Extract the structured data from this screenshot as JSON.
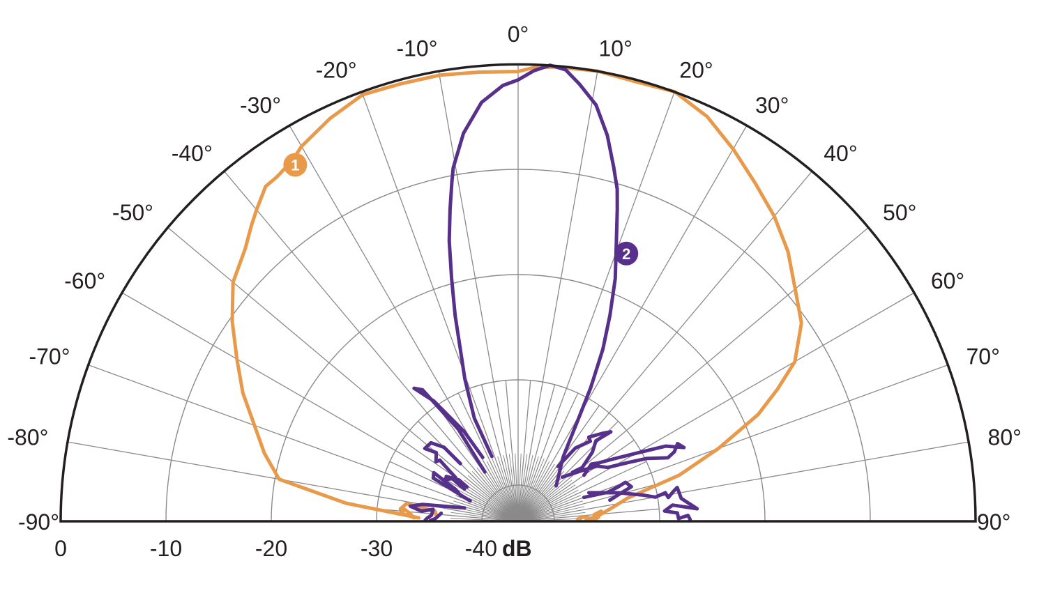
{
  "chart_data": {
    "type": "polar",
    "title": "",
    "radial_axis": {
      "unit": "dB",
      "tick_labels": [
        "0",
        "-10",
        "-20",
        "-30",
        "-40"
      ],
      "ticks": [
        0,
        -10,
        -20,
        -30,
        -40
      ],
      "range": [
        -40,
        0
      ]
    },
    "angular_axis": {
      "range": [
        -90,
        90
      ],
      "tick_step": 10,
      "tick_labels": [
        "-90°",
        "-80°",
        "-70°",
        "-60°",
        "-50°",
        "-40°",
        "-30°",
        "-20°",
        "-10°",
        "0°",
        "10°",
        "20°",
        "30°",
        "40°",
        "50°",
        "60°",
        "70°",
        "80°",
        "90°"
      ],
      "minor_spoke_step": 5
    },
    "grid": true,
    "legend": "numbered badges on curves",
    "series": [
      {
        "name": "1",
        "color": "#e8994a",
        "badge": {
          "label": "1",
          "angle": -32,
          "db": -3.5
        },
        "points": [
          [
            -88,
            -34
          ],
          [
            -84,
            -27
          ],
          [
            -80,
            -20.4
          ],
          [
            -75,
            -18.5
          ],
          [
            -70,
            -16.8
          ],
          [
            -65,
            -14.6
          ],
          [
            -60,
            -12.6
          ],
          [
            -55,
            -10.3
          ],
          [
            -50,
            -8.1
          ],
          [
            -45,
            -6.8
          ],
          [
            -42,
            -5.6
          ],
          [
            -40,
            -4.8
          ],
          [
            -37,
            -3.6
          ],
          [
            -35,
            -3.5
          ],
          [
            -32,
            -3.0
          ],
          [
            -30,
            -2.3
          ],
          [
            -25,
            -1.2
          ],
          [
            -20,
            -0.3
          ],
          [
            -15,
            -0.4
          ],
          [
            -10,
            -0.4
          ],
          [
            -5,
            -0.6
          ],
          [
            0,
            -0.7
          ],
          [
            2,
            -0.3
          ],
          [
            5,
            -0.1
          ],
          [
            10,
            0
          ],
          [
            15,
            -0.2
          ],
          [
            20,
            0
          ],
          [
            25,
            -1.0
          ],
          [
            30,
            -2.6
          ],
          [
            35,
            -4.2
          ],
          [
            40,
            -5.6
          ],
          [
            45,
            -7.2
          ],
          [
            50,
            -9.1
          ],
          [
            55,
            -10.6
          ],
          [
            60,
            -13.1
          ],
          [
            63,
            -15.8
          ],
          [
            66,
            -18.5
          ],
          [
            70,
            -23.2
          ],
          [
            74,
            -27.5
          ],
          [
            78,
            -32.8
          ],
          [
            82,
            -34.5
          ],
          [
            86,
            -35.8
          ],
          [
            89,
            -37
          ]
        ]
      },
      {
        "name": "2",
        "color": "#56308a",
        "badge": {
          "label": "2",
          "angle": 22,
          "db": -16
        },
        "main_lobe": [
          [
            -22,
            -36.8
          ],
          [
            -23,
            -32.8
          ],
          [
            -20.5,
            -29
          ],
          [
            -18.5,
            -26.1
          ],
          [
            -17,
            -23
          ],
          [
            -15.3,
            -19.5
          ],
          [
            -13.8,
            -16
          ],
          [
            -12.3,
            -13.1
          ],
          [
            -11,
            -10.5
          ],
          [
            -10.4,
            -9.3
          ],
          [
            -8,
            -6.2
          ],
          [
            -5,
            -3.5
          ],
          [
            -2,
            -2.0
          ],
          [
            0,
            -1.5
          ],
          [
            2,
            -0.6
          ],
          [
            4,
            0
          ],
          [
            6,
            -0.3
          ],
          [
            8,
            -1.5
          ],
          [
            10.6,
            -3.2
          ],
          [
            13,
            -5.8
          ],
          [
            15.1,
            -8.6
          ],
          [
            16.6,
            -10.5
          ],
          [
            17.6,
            -12.3
          ],
          [
            19.5,
            -15.5
          ],
          [
            21.8,
            -18.6
          ],
          [
            24,
            -22
          ],
          [
            26.2,
            -25.2
          ],
          [
            28.5,
            -29
          ],
          [
            30.4,
            -32.1
          ],
          [
            35,
            -36
          ],
          [
            47,
            -38.5
          ]
        ],
        "side_lobes": [
          [
            [
              -34,
              -37.8
            ],
            [
              -33,
              -33
            ],
            [
              -36,
              -28
            ],
            [
              -38,
              -27.4
            ],
            [
              -35,
              -29.5
            ],
            [
              -31,
              -33.5
            ],
            [
              -29,
              -36.5
            ]
          ],
          [
            [
              -55,
              -36.2
            ],
            [
              -52,
              -34
            ],
            [
              -54,
              -33.8
            ],
            [
              -50,
              -33.3
            ],
            [
              -52,
              -32.2
            ],
            [
              -48,
              -32.3
            ],
            [
              -45,
              -33.5
            ],
            [
              -45,
              -35.7
            ]
          ],
          [
            [
              -59,
              -37.5
            ],
            [
              -57,
              -36
            ],
            [
              -60,
              -35.5
            ],
            [
              -58,
              -35.4
            ],
            [
              -55,
              -36.6
            ],
            [
              -56,
              -37.6
            ]
          ],
          [
            [
              -67,
              -38.5
            ],
            [
              -63,
              -34.4
            ],
            [
              -60,
              -34.2
            ],
            [
              -63,
              -36.8
            ],
            [
              -66,
              -37.5
            ]
          ],
          [
            [
              -76,
              -38.2
            ],
            [
              -80,
              -34.2
            ],
            [
              -82,
              -33.1
            ],
            [
              -84,
              -34.2
            ],
            [
              -82,
              -35.3
            ],
            [
              -86,
              -35.2
            ],
            [
              -88,
              -34.8
            ],
            [
              -89.5,
              -34.6
            ]
          ],
          [
            [
              -84,
              -36.1
            ],
            [
              -88,
              -35.6
            ],
            [
              -89.5,
              -35.1
            ]
          ],
          [
            [
              36,
              -37
            ],
            [
              38,
              -34.6
            ],
            [
              42,
              -33.2
            ],
            [
              40,
              -33
            ],
            [
              44,
              -31.8
            ],
            [
              46,
              -31.2
            ],
            [
              44,
              -32.8
            ],
            [
              47,
              -33.8
            ],
            [
              50,
              -35.5
            ],
            [
              48,
              -36.5
            ]
          ],
          [
            [
              45,
              -37.5
            ],
            [
              52,
              -35.5
            ],
            [
              55,
              -34.3
            ],
            [
              59,
              -33.5
            ],
            [
              62,
              -31.5
            ],
            [
              64,
              -29.8
            ],
            [
              67,
              -28
            ],
            [
              66,
              -27.2
            ],
            [
              64,
              -26.6
            ],
            [
              66,
              -26.2
            ],
            [
              63,
              -27.7
            ],
            [
              60,
              -30.5
            ],
            [
              57,
              -32.5
            ],
            [
              54,
              -34
            ],
            [
              52,
              -34.6
            ],
            [
              55,
              -35.8
            ]
          ],
          [
            [
              68,
              -36.2
            ],
            [
              74,
              -33.6
            ],
            [
              78,
              -31.4
            ],
            [
              80,
              -30.2
            ],
            [
              79,
              -29.2
            ],
            [
              81,
              -29
            ],
            [
              79,
              -28.4
            ],
            [
              78,
              -28
            ],
            [
              82,
              -27.8
            ],
            [
              86,
              -26.4
            ],
            [
              84,
              -28.7
            ],
            [
              86,
              -29.5
            ],
            [
              87,
              -28.3
            ],
            [
              89,
              -28.2
            ],
            [
              88,
              -27.3
            ],
            [
              89.5,
              -27.1
            ]
          ],
          [
            [
              70,
              -36.8
            ],
            [
              72,
              -34.5
            ],
            [
              71,
              -33.4
            ],
            [
              70,
              -32.6
            ],
            [
              73,
              -32.2
            ],
            [
              75,
              -33.5
            ],
            [
              77,
              -34.5
            ]
          ]
        ],
        "orange_base_fragments": [
          [
            [
              -88,
              -33.5
            ],
            [
              -86,
              -33.2
            ],
            [
              -84,
              -32.6
            ],
            [
              -86,
              -32.3
            ],
            [
              -88,
              -33.6
            ]
          ],
          [
            [
              -87,
              -35.7
            ],
            [
              -83,
              -35.5
            ],
            [
              -81,
              -32.7
            ],
            [
              -84,
              -32.2
            ]
          ],
          [
            [
              83,
              -35.5
            ],
            [
              85,
              -36.2
            ],
            [
              87,
              -35.8
            ],
            [
              88.5,
              -36.1
            ],
            [
              86,
              -37.2
            ],
            [
              88,
              -37.8
            ],
            [
              89.5,
              -37.5
            ]
          ]
        ]
      }
    ]
  },
  "axis": {
    "db_unit": "dB",
    "db_labels": [
      "0",
      "-10",
      "-20",
      "-30",
      "-40"
    ],
    "angle_labels_left": [
      "-90°",
      "-80°",
      "-70°",
      "-60°",
      "-50°",
      "-40°",
      "-30°",
      "-20°",
      "-10°"
    ],
    "angle_label_center": "0°",
    "angle_labels_right": [
      "10°",
      "20°",
      "30°",
      "40°",
      "50°",
      "60°",
      "70°",
      "80°",
      "90°"
    ]
  }
}
